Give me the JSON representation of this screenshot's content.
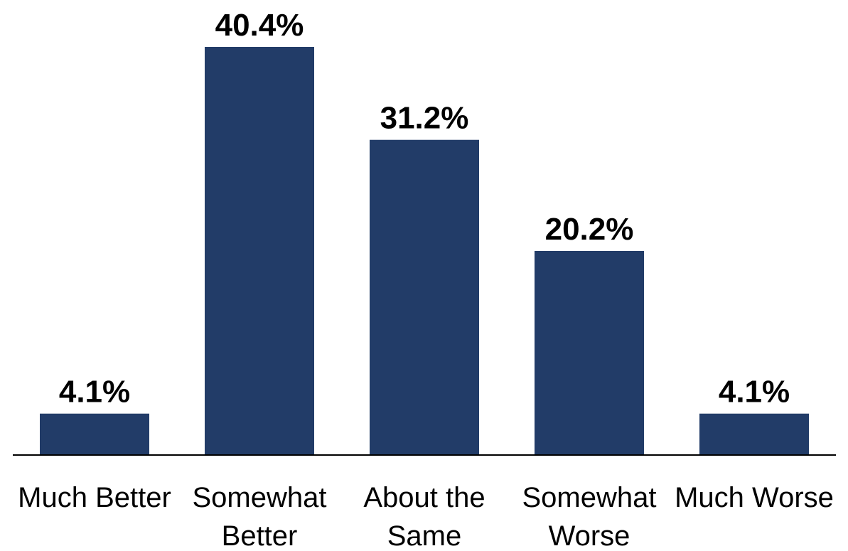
{
  "chart_data": {
    "type": "bar",
    "categories": [
      [
        "Much Better"
      ],
      [
        "Somewhat",
        "Better"
      ],
      [
        "About the",
        "Same"
      ],
      [
        "Somewhat",
        "Worse"
      ],
      [
        "Much Worse"
      ]
    ],
    "values": [
      4.1,
      40.4,
      31.2,
      20.2,
      4.1
    ],
    "value_labels": [
      "4.1%",
      "40.4%",
      "31.2%",
      "20.2%",
      "4.1%"
    ],
    "title": "",
    "xlabel": "",
    "ylabel": "",
    "ylim": [
      0,
      40.4
    ],
    "grid": false,
    "legend": "none",
    "bar_color": "#223c68",
    "axis_color": "#000000"
  }
}
